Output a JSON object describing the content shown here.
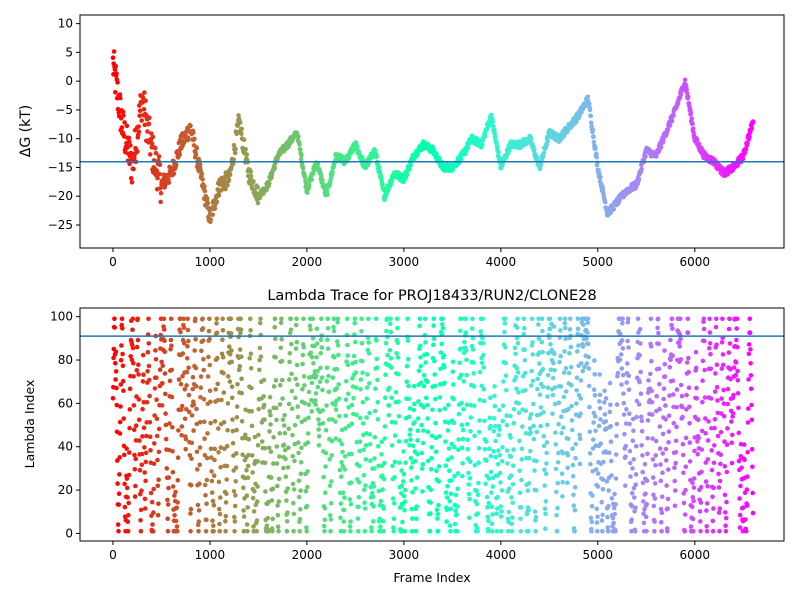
{
  "chart_data": [
    {
      "type": "scatter",
      "title": "",
      "xlabel": "",
      "ylabel": "ΔG (kT)",
      "xlim": [
        -340,
        6920
      ],
      "ylim": [
        -29,
        11.5
      ],
      "xticks": [
        0,
        1000,
        2000,
        3000,
        4000,
        5000,
        6000
      ],
      "yticks": [
        10,
        5,
        0,
        -5,
        -10,
        -15,
        -20,
        -25
      ],
      "hline": {
        "y": -14.0,
        "color": "#1f77b4"
      },
      "colormap": "rainbow",
      "x_range_of_points": [
        0,
        6600
      ],
      "series": [
        {
          "x": [
            0,
            100,
            200,
            300,
            400,
            500,
            600,
            700,
            800,
            900,
            1000,
            1100,
            1200,
            1300,
            1400,
            1500,
            1600,
            1700,
            1800,
            1900,
            2000,
            2100,
            2200,
            2300,
            2400,
            2500,
            2600,
            2700,
            2800,
            2900,
            3000,
            3100,
            3200,
            3300,
            3400,
            3500,
            3600,
            3700,
            3800,
            3900,
            4000,
            4100,
            4200,
            4300,
            4400,
            4500,
            4600,
            4700,
            4800,
            4900,
            5000,
            5100,
            5200,
            5300,
            5400,
            5500,
            5600,
            5700,
            5800,
            5900,
            6000,
            6100,
            6200,
            6300,
            6400,
            6500,
            6600
          ],
          "y": [
            3,
            -8,
            -15,
            -3,
            -12,
            -18,
            -16,
            -11,
            -8,
            -16,
            -24,
            -18,
            -17,
            -7,
            -16,
            -20,
            -18,
            -13,
            -11,
            -9,
            -19,
            -14,
            -20,
            -13,
            -14,
            -11,
            -15,
            -12,
            -20,
            -16,
            -17,
            -13,
            -11,
            -12,
            -15,
            -15,
            -13,
            -10,
            -11,
            -6,
            -15,
            -11,
            -11,
            -10,
            -15,
            -9,
            -10,
            -8,
            -6,
            -3,
            -15,
            -23,
            -21,
            -19,
            -18,
            -12,
            -13,
            -9,
            -5,
            0,
            -10,
            -13,
            -14,
            -16,
            -15,
            -13,
            -7
          ]
        }
      ]
    },
    {
      "type": "scatter",
      "title": "Lambda Trace for PROJ18433/RUN2/CLONE28",
      "xlabel": "Frame Index",
      "ylabel": "Lambda Index",
      "xlim": [
        -340,
        6920
      ],
      "ylim": [
        -3.5,
        104
      ],
      "xticks": [
        0,
        1000,
        2000,
        3000,
        4000,
        5000,
        6000
      ],
      "yticks": [
        0,
        20,
        40,
        60,
        80,
        100
      ],
      "hline": {
        "y": 91,
        "color": "#1f77b4"
      },
      "colormap": "rainbow",
      "x_range_of_points": [
        0,
        6600
      ],
      "y_range_of_points": [
        1,
        99
      ],
      "description_of_points": "one point per frame, lambda index sweeping between 1 and 99 in vertical columns"
    }
  ]
}
